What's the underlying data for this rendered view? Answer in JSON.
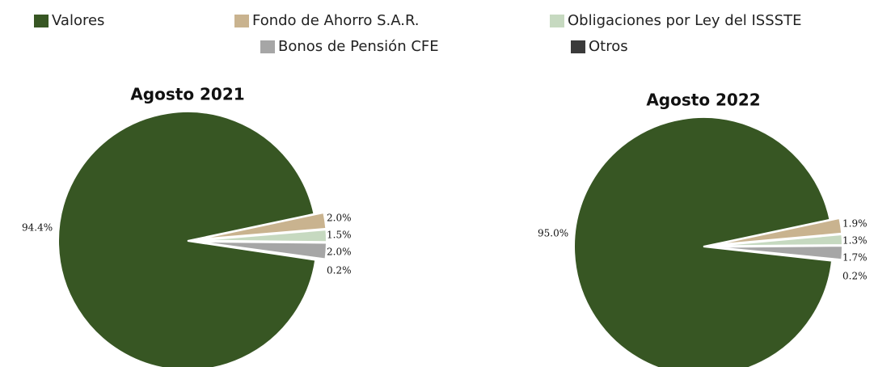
{
  "chart_data": [
    {
      "type": "pie",
      "title": "Agosto 2021",
      "categories": [
        "Valores",
        "Fondo de Ahorro S.A.R.",
        "Obligaciones por Ley del ISSSTE",
        "Bonos de Pensión CFE",
        "Otros"
      ],
      "values": [
        94.4,
        2.0,
        1.5,
        2.0,
        0.2
      ],
      "value_labels": [
        "94.4%",
        "2.0%",
        "1.5%",
        "2.0%",
        "0.2%"
      ],
      "colors": [
        "#375623",
        "#c9b38f",
        "#c6d9c0",
        "#a6a6a6",
        "#3a3a3a"
      ]
    },
    {
      "type": "pie",
      "title": "Agosto 2022",
      "categories": [
        "Valores",
        "Fondo de Ahorro S.A.R.",
        "Obligaciones por Ley del ISSSTE",
        "Bonos de Pensión CFE",
        "Otros"
      ],
      "values": [
        95.0,
        1.9,
        1.3,
        1.7,
        0.2
      ],
      "value_labels": [
        "95.0%",
        "1.9%",
        "1.3%",
        "1.7%",
        "0.2%"
      ],
      "colors": [
        "#375623",
        "#c9b38f",
        "#c6d9c0",
        "#a6a6a6",
        "#3a3a3a"
      ]
    }
  ]
}
